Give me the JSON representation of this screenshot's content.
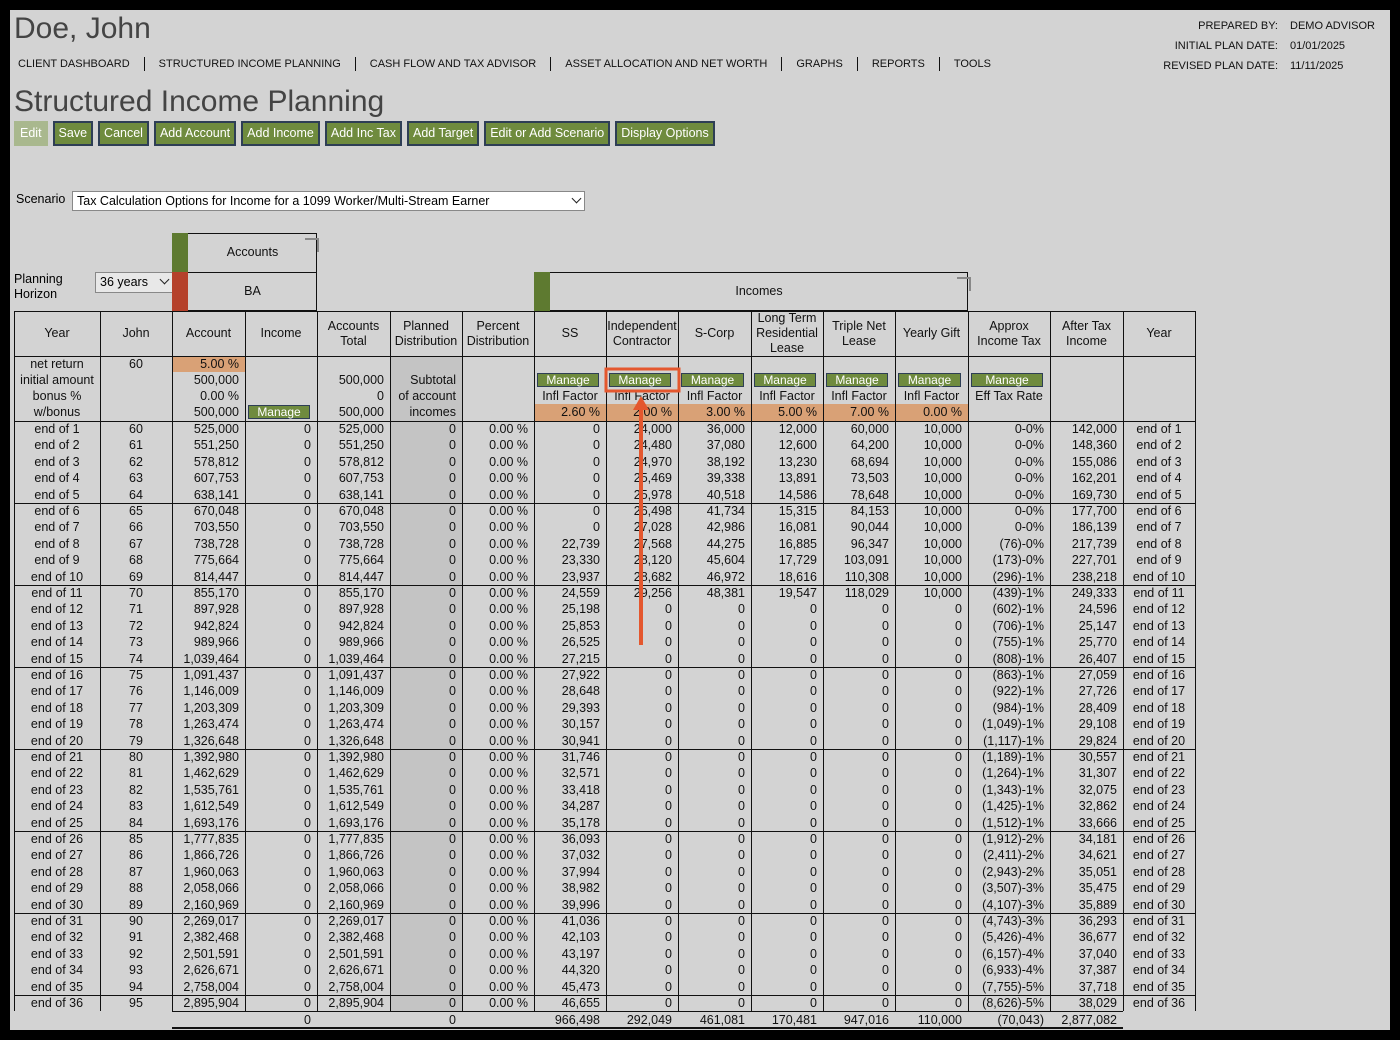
{
  "header": {
    "name": "Doe, John",
    "info": [
      [
        "PREPARED BY:",
        "DEMO ADVISOR"
      ],
      [
        "INITIAL PLAN DATE:",
        "01/01/2025"
      ],
      [
        "REVISED PLAN DATE:",
        "11/11/2025"
      ]
    ]
  },
  "nav": [
    "CLIENT DASHBOARD",
    "STRUCTURED INCOME PLANNING",
    "CASH FLOW AND TAX ADVISOR",
    "ASSET ALLOCATION AND NET WORTH",
    "GRAPHS",
    "REPORTS",
    "TOOLS"
  ],
  "page_title": "Structured Income Planning",
  "buttons": [
    "Edit",
    "Save",
    "Cancel",
    "Add Account",
    "Add Income",
    "Add Inc Tax",
    "Add Target",
    "Edit or Add Scenario",
    "Display Options"
  ],
  "scenario": {
    "label": "Scenario",
    "value": "Tax Calculation Options for Income for a 1099 Worker/Multi-Stream Earner"
  },
  "planning_horizon": {
    "label": "Planning Horizon",
    "value": "36 years"
  },
  "accounts_group": {
    "title": "Accounts",
    "account": "BA"
  },
  "incomes_group": {
    "title": "Incomes"
  },
  "table": {
    "columns": [
      "Year",
      "John",
      "Account",
      "Income",
      "Accounts Total",
      "Planned Distribution",
      "Percent Distribution",
      "SS",
      "Independent Contractor",
      "S-Corp",
      "Long Term Residential Lease",
      "Triple Net Lease",
      "Yearly Gift",
      "Approx Income Tax",
      "After Tax Income",
      "Year"
    ],
    "setup": [
      {
        "0": "net return",
        "1": "60",
        "2": "5.00 %"
      },
      {
        "0": "initial amount",
        "2": "500,000",
        "4": "500,000",
        "5": "Subtotal",
        "7": "Manage",
        "8": "Manage",
        "9": "Manage",
        "10": "Manage",
        "11": "Manage",
        "12": "Manage",
        "13": "Manage"
      },
      {
        "0": "bonus %",
        "2": "0.00 %",
        "4": "0",
        "5": "of account",
        "7": "Infl Factor",
        "8": "Infl Factor",
        "9": "Infl Factor",
        "10": "Infl Factor",
        "11": "Infl Factor",
        "12": "Infl Factor",
        "13": "Eff Tax Rate"
      },
      {
        "0": "w/bonus",
        "2": "500,000",
        "3": "Manage",
        "4": "500,000",
        "5": "incomes",
        "7": "2.60 %",
        "8": "2.00 %",
        "9": "3.00 %",
        "10": "5.00 %",
        "11": "7.00 %",
        "12": "0.00 %"
      }
    ],
    "rows": [
      [
        "end of 1",
        "60",
        "525,000",
        "0",
        "525,000",
        "0",
        "0.00 %",
        "0",
        "24,000",
        "36,000",
        "12,000",
        "60,000",
        "10,000",
        "0-0%",
        "142,000",
        "end of 1"
      ],
      [
        "end of 2",
        "61",
        "551,250",
        "0",
        "551,250",
        "0",
        "0.00 %",
        "0",
        "24,480",
        "37,080",
        "12,600",
        "64,200",
        "10,000",
        "0-0%",
        "148,360",
        "end of 2"
      ],
      [
        "end of 3",
        "62",
        "578,812",
        "0",
        "578,812",
        "0",
        "0.00 %",
        "0",
        "24,970",
        "38,192",
        "13,230",
        "68,694",
        "10,000",
        "0-0%",
        "155,086",
        "end of 3"
      ],
      [
        "end of 4",
        "63",
        "607,753",
        "0",
        "607,753",
        "0",
        "0.00 %",
        "0",
        "25,469",
        "39,338",
        "13,891",
        "73,503",
        "10,000",
        "0-0%",
        "162,201",
        "end of 4"
      ],
      [
        "end of 5",
        "64",
        "638,141",
        "0",
        "638,141",
        "0",
        "0.00 %",
        "0",
        "25,978",
        "40,518",
        "14,586",
        "78,648",
        "10,000",
        "0-0%",
        "169,730",
        "end of 5"
      ],
      [
        "end of 6",
        "65",
        "670,048",
        "0",
        "670,048",
        "0",
        "0.00 %",
        "0",
        "26,498",
        "41,734",
        "15,315",
        "84,153",
        "10,000",
        "0-0%",
        "177,700",
        "end of 6"
      ],
      [
        "end of 7",
        "66",
        "703,550",
        "0",
        "703,550",
        "0",
        "0.00 %",
        "0",
        "27,028",
        "42,986",
        "16,081",
        "90,044",
        "10,000",
        "0-0%",
        "186,139",
        "end of 7"
      ],
      [
        "end of 8",
        "67",
        "738,728",
        "0",
        "738,728",
        "0",
        "0.00 %",
        "22,739",
        "27,568",
        "44,275",
        "16,885",
        "96,347",
        "10,000",
        "(76)-0%",
        "217,739",
        "end of 8"
      ],
      [
        "end of 9",
        "68",
        "775,664",
        "0",
        "775,664",
        "0",
        "0.00 %",
        "23,330",
        "28,120",
        "45,604",
        "17,729",
        "103,091",
        "10,000",
        "(173)-0%",
        "227,701",
        "end of 9"
      ],
      [
        "end of 10",
        "69",
        "814,447",
        "0",
        "814,447",
        "0",
        "0.00 %",
        "23,937",
        "28,682",
        "46,972",
        "18,616",
        "110,308",
        "10,000",
        "(296)-1%",
        "238,218",
        "end of 10"
      ],
      [
        "end of 11",
        "70",
        "855,170",
        "0",
        "855,170",
        "0",
        "0.00 %",
        "24,559",
        "29,256",
        "48,381",
        "19,547",
        "118,029",
        "10,000",
        "(439)-1%",
        "249,333",
        "end of 11"
      ],
      [
        "end of 12",
        "71",
        "897,928",
        "0",
        "897,928",
        "0",
        "0.00 %",
        "25,198",
        "0",
        "0",
        "0",
        "0",
        "0",
        "(602)-1%",
        "24,596",
        "end of 12"
      ],
      [
        "end of 13",
        "72",
        "942,824",
        "0",
        "942,824",
        "0",
        "0.00 %",
        "25,853",
        "0",
        "0",
        "0",
        "0",
        "0",
        "(706)-1%",
        "25,147",
        "end of 13"
      ],
      [
        "end of 14",
        "73",
        "989,966",
        "0",
        "989,966",
        "0",
        "0.00 %",
        "26,525",
        "0",
        "0",
        "0",
        "0",
        "0",
        "(755)-1%",
        "25,770",
        "end of 14"
      ],
      [
        "end of 15",
        "74",
        "1,039,464",
        "0",
        "1,039,464",
        "0",
        "0.00 %",
        "27,215",
        "0",
        "0",
        "0",
        "0",
        "0",
        "(808)-1%",
        "26,407",
        "end of 15"
      ],
      [
        "end of 16",
        "75",
        "1,091,437",
        "0",
        "1,091,437",
        "0",
        "0.00 %",
        "27,922",
        "0",
        "0",
        "0",
        "0",
        "0",
        "(863)-1%",
        "27,059",
        "end of 16"
      ],
      [
        "end of 17",
        "76",
        "1,146,009",
        "0",
        "1,146,009",
        "0",
        "0.00 %",
        "28,648",
        "0",
        "0",
        "0",
        "0",
        "0",
        "(922)-1%",
        "27,726",
        "end of 17"
      ],
      [
        "end of 18",
        "77",
        "1,203,309",
        "0",
        "1,203,309",
        "0",
        "0.00 %",
        "29,393",
        "0",
        "0",
        "0",
        "0",
        "0",
        "(984)-1%",
        "28,409",
        "end of 18"
      ],
      [
        "end of 19",
        "78",
        "1,263,474",
        "0",
        "1,263,474",
        "0",
        "0.00 %",
        "30,157",
        "0",
        "0",
        "0",
        "0",
        "0",
        "(1,049)-1%",
        "29,108",
        "end of 19"
      ],
      [
        "end of 20",
        "79",
        "1,326,648",
        "0",
        "1,326,648",
        "0",
        "0.00 %",
        "30,941",
        "0",
        "0",
        "0",
        "0",
        "0",
        "(1,117)-1%",
        "29,824",
        "end of 20"
      ],
      [
        "end of 21",
        "80",
        "1,392,980",
        "0",
        "1,392,980",
        "0",
        "0.00 %",
        "31,746",
        "0",
        "0",
        "0",
        "0",
        "0",
        "(1,189)-1%",
        "30,557",
        "end of 21"
      ],
      [
        "end of 22",
        "81",
        "1,462,629",
        "0",
        "1,462,629",
        "0",
        "0.00 %",
        "32,571",
        "0",
        "0",
        "0",
        "0",
        "0",
        "(1,264)-1%",
        "31,307",
        "end of 22"
      ],
      [
        "end of 23",
        "82",
        "1,535,761",
        "0",
        "1,535,761",
        "0",
        "0.00 %",
        "33,418",
        "0",
        "0",
        "0",
        "0",
        "0",
        "(1,343)-1%",
        "32,075",
        "end of 23"
      ],
      [
        "end of 24",
        "83",
        "1,612,549",
        "0",
        "1,612,549",
        "0",
        "0.00 %",
        "34,287",
        "0",
        "0",
        "0",
        "0",
        "0",
        "(1,425)-1%",
        "32,862",
        "end of 24"
      ],
      [
        "end of 25",
        "84",
        "1,693,176",
        "0",
        "1,693,176",
        "0",
        "0.00 %",
        "35,178",
        "0",
        "0",
        "0",
        "0",
        "0",
        "(1,512)-1%",
        "33,666",
        "end of 25"
      ],
      [
        "end of 26",
        "85",
        "1,777,835",
        "0",
        "1,777,835",
        "0",
        "0.00 %",
        "36,093",
        "0",
        "0",
        "0",
        "0",
        "0",
        "(1,912)-2%",
        "34,181",
        "end of 26"
      ],
      [
        "end of 27",
        "86",
        "1,866,726",
        "0",
        "1,866,726",
        "0",
        "0.00 %",
        "37,032",
        "0",
        "0",
        "0",
        "0",
        "0",
        "(2,411)-2%",
        "34,621",
        "end of 27"
      ],
      [
        "end of 28",
        "87",
        "1,960,063",
        "0",
        "1,960,063",
        "0",
        "0.00 %",
        "37,994",
        "0",
        "0",
        "0",
        "0",
        "0",
        "(2,943)-2%",
        "35,051",
        "end of 28"
      ],
      [
        "end of 29",
        "88",
        "2,058,066",
        "0",
        "2,058,066",
        "0",
        "0.00 %",
        "38,982",
        "0",
        "0",
        "0",
        "0",
        "0",
        "(3,507)-3%",
        "35,475",
        "end of 29"
      ],
      [
        "end of 30",
        "89",
        "2,160,969",
        "0",
        "2,160,969",
        "0",
        "0.00 %",
        "39,996",
        "0",
        "0",
        "0",
        "0",
        "0",
        "(4,107)-3%",
        "35,889",
        "end of 30"
      ],
      [
        "end of 31",
        "90",
        "2,269,017",
        "0",
        "2,269,017",
        "0",
        "0.00 %",
        "41,036",
        "0",
        "0",
        "0",
        "0",
        "0",
        "(4,743)-3%",
        "36,293",
        "end of 31"
      ],
      [
        "end of 32",
        "91",
        "2,382,468",
        "0",
        "2,382,468",
        "0",
        "0.00 %",
        "42,103",
        "0",
        "0",
        "0",
        "0",
        "0",
        "(5,426)-4%",
        "36,677",
        "end of 32"
      ],
      [
        "end of 33",
        "92",
        "2,501,591",
        "0",
        "2,501,591",
        "0",
        "0.00 %",
        "43,197",
        "0",
        "0",
        "0",
        "0",
        "0",
        "(6,157)-4%",
        "37,040",
        "end of 33"
      ],
      [
        "end of 34",
        "93",
        "2,626,671",
        "0",
        "2,626,671",
        "0",
        "0.00 %",
        "44,320",
        "0",
        "0",
        "0",
        "0",
        "0",
        "(6,933)-4%",
        "37,387",
        "end of 34"
      ],
      [
        "end of 35",
        "94",
        "2,758,004",
        "0",
        "2,758,004",
        "0",
        "0.00 %",
        "45,473",
        "0",
        "0",
        "0",
        "0",
        "0",
        "(7,755)-5%",
        "37,718",
        "end of 35"
      ],
      [
        "end of 36",
        "95",
        "2,895,904",
        "0",
        "2,895,904",
        "0",
        "0.00 %",
        "46,655",
        "0",
        "0",
        "0",
        "0",
        "0",
        "(8,626)-5%",
        "38,029",
        "end of 36"
      ]
    ],
    "totals": {
      "3": "0",
      "5": "0",
      "7": "966,498",
      "8": "292,049",
      "9": "461,081",
      "10": "170,481",
      "11": "947,016",
      "12": "110,000",
      "13": "(70,043)",
      "14": "2,877,082"
    }
  }
}
